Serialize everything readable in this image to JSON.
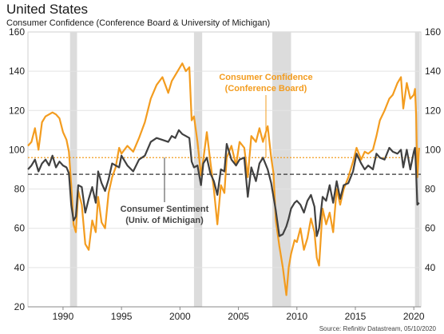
{
  "header": {
    "title": "United States",
    "subtitle": "Consumer Confidence (Conference Board & University of Michigan)"
  },
  "footer": {
    "source": "Source: Refinitiv Datastream, 05/10/2020"
  },
  "chart_data": {
    "type": "line",
    "title": "United States",
    "subtitle": "Consumer Confidence (Conference Board & University of Michigan)",
    "xlabel": "",
    "ylabel": "",
    "xlim": [
      1987,
      2020.6
    ],
    "ylim": [
      20,
      160
    ],
    "x_ticks": [
      "1990",
      "1995",
      "2000",
      "2005",
      "2010",
      "2015",
      "2020"
    ],
    "y_ticks_left": [
      "20",
      "40",
      "60",
      "80",
      "100",
      "120",
      "140",
      "160"
    ],
    "y_ticks_right": [
      "40",
      "60",
      "80",
      "100",
      "120",
      "140",
      "160"
    ],
    "grid": "horizontal",
    "recessions": [
      [
        1990.6,
        1991.2
      ],
      [
        2001.2,
        2001.9
      ],
      [
        2007.9,
        2009.5
      ],
      [
        2020.1,
        2020.5
      ]
    ],
    "annotations": [
      {
        "lines": [
          "Consumer Confidence",
          "(Conference Board)"
        ],
        "color": "#f39c1f",
        "series": 0
      },
      {
        "lines": [
          "Consumer Sentiment",
          "(Univ. of Michigan)"
        ],
        "color": "#444444",
        "series": 1
      }
    ],
    "reference_lines": [
      {
        "value": 96,
        "color": "#f39c1f",
        "style": "dotted"
      },
      {
        "value": 87.5,
        "color": "#333333",
        "style": "dashed"
      }
    ],
    "series": [
      {
        "name": "Consumer Confidence (Conference Board)",
        "color": "#f39c1f",
        "points": [
          [
            1987,
            102
          ],
          [
            1987.3,
            104
          ],
          [
            1987.6,
            111
          ],
          [
            1987.9,
            100
          ],
          [
            1988.2,
            114
          ],
          [
            1988.5,
            117
          ],
          [
            1988.8,
            118
          ],
          [
            1989.1,
            119
          ],
          [
            1989.4,
            118
          ],
          [
            1989.7,
            116
          ],
          [
            1990,
            109
          ],
          [
            1990.3,
            105
          ],
          [
            1990.5,
            99
          ],
          [
            1990.7,
            82
          ],
          [
            1990.9,
            62
          ],
          [
            1991.1,
            58
          ],
          [
            1991.3,
            79
          ],
          [
            1991.6,
            72
          ],
          [
            1991.9,
            52
          ],
          [
            1992.2,
            49
          ],
          [
            1992.5,
            64
          ],
          [
            1992.8,
            58
          ],
          [
            1993,
            76
          ],
          [
            1993.3,
            63
          ],
          [
            1993.6,
            60
          ],
          [
            1993.9,
            78
          ],
          [
            1994.2,
            86
          ],
          [
            1994.5,
            91
          ],
          [
            1994.8,
            101
          ],
          [
            1995,
            98
          ],
          [
            1995.5,
            102
          ],
          [
            1996,
            99
          ],
          [
            1996.5,
            106
          ],
          [
            1997,
            114
          ],
          [
            1997.5,
            126
          ],
          [
            1998,
            133
          ],
          [
            1998.5,
            137
          ],
          [
            1999,
            129
          ],
          [
            1999.3,
            135
          ],
          [
            1999.6,
            138
          ],
          [
            1999.9,
            141
          ],
          [
            2000.2,
            144
          ],
          [
            2000.5,
            140
          ],
          [
            2000.8,
            142
          ],
          [
            2001,
            115
          ],
          [
            2001.2,
            117
          ],
          [
            2001.5,
            104
          ],
          [
            2001.8,
            87
          ],
          [
            2002,
            95
          ],
          [
            2002.3,
            109
          ],
          [
            2002.6,
            94
          ],
          [
            2002.9,
            80
          ],
          [
            2003.2,
            62
          ],
          [
            2003.5,
            82
          ],
          [
            2003.8,
            78
          ],
          [
            2004,
            96
          ],
          [
            2004.4,
            102
          ],
          [
            2004.8,
            92
          ],
          [
            2005.1,
            104
          ],
          [
            2005.5,
            101
          ],
          [
            2005.8,
            86
          ],
          [
            2006.1,
            107
          ],
          [
            2006.5,
            104
          ],
          [
            2006.8,
            111
          ],
          [
            2007.1,
            104
          ],
          [
            2007.5,
            112
          ],
          [
            2007.8,
            96
          ],
          [
            2008,
            88
          ],
          [
            2008.2,
            64
          ],
          [
            2008.5,
            51
          ],
          [
            2008.8,
            40
          ],
          [
            2009.1,
            26
          ],
          [
            2009.3,
            40
          ],
          [
            2009.5,
            47
          ],
          [
            2009.8,
            54
          ],
          [
            2010,
            53
          ],
          [
            2010.3,
            60
          ],
          [
            2010.6,
            49
          ],
          [
            2010.9,
            55
          ],
          [
            2011.2,
            65
          ],
          [
            2011.5,
            58
          ],
          [
            2011.7,
            45
          ],
          [
            2011.9,
            41
          ],
          [
            2012.2,
            70
          ],
          [
            2012.5,
            62
          ],
          [
            2012.8,
            68
          ],
          [
            2013.1,
            58
          ],
          [
            2013.4,
            80
          ],
          [
            2013.7,
            72
          ],
          [
            2014,
            80
          ],
          [
            2014.4,
            86
          ],
          [
            2014.8,
            94
          ],
          [
            2015.1,
            101
          ],
          [
            2015.5,
            95
          ],
          [
            2015.8,
            99
          ],
          [
            2016.1,
            98
          ],
          [
            2016.5,
            100
          ],
          [
            2016.8,
            107
          ],
          [
            2017.1,
            115
          ],
          [
            2017.5,
            120
          ],
          [
            2017.9,
            126
          ],
          [
            2018.2,
            128
          ],
          [
            2018.6,
            134
          ],
          [
            2018.9,
            137
          ],
          [
            2019.1,
            121
          ],
          [
            2019.4,
            134
          ],
          [
            2019.7,
            126
          ],
          [
            2020,
            128
          ],
          [
            2020.1,
            131
          ],
          [
            2020.2,
            118
          ],
          [
            2020.3,
            86
          ],
          [
            2020.45,
            101
          ]
        ]
      },
      {
        "name": "Consumer Sentiment (Univ. of Michigan)",
        "color": "#404040",
        "points": [
          [
            1987,
            90
          ],
          [
            1987.3,
            92
          ],
          [
            1987.6,
            95
          ],
          [
            1987.9,
            89
          ],
          [
            1988.2,
            93
          ],
          [
            1988.5,
            95
          ],
          [
            1988.8,
            92
          ],
          [
            1989.1,
            97
          ],
          [
            1989.4,
            91
          ],
          [
            1989.7,
            94
          ],
          [
            1990,
            92
          ],
          [
            1990.3,
            91
          ],
          [
            1990.5,
            88
          ],
          [
            1990.7,
            72
          ],
          [
            1990.9,
            64
          ],
          [
            1991.1,
            66
          ],
          [
            1991.3,
            82
          ],
          [
            1991.6,
            81
          ],
          [
            1991.9,
            68
          ],
          [
            1992.2,
            75
          ],
          [
            1992.5,
            81
          ],
          [
            1992.8,
            73
          ],
          [
            1993,
            89
          ],
          [
            1993.3,
            83
          ],
          [
            1993.6,
            79
          ],
          [
            1993.9,
            85
          ],
          [
            1994.2,
            93
          ],
          [
            1994.5,
            92
          ],
          [
            1994.8,
            91
          ],
          [
            1995,
            97
          ],
          [
            1995.5,
            92
          ],
          [
            1996,
            89
          ],
          [
            1996.5,
            95
          ],
          [
            1997,
            97
          ],
          [
            1997.5,
            104
          ],
          [
            1998,
            106
          ],
          [
            1998.5,
            105
          ],
          [
            1999,
            104
          ],
          [
            1999.3,
            107
          ],
          [
            1999.6,
            106
          ],
          [
            1999.9,
            110
          ],
          [
            2000.2,
            108
          ],
          [
            2000.5,
            107
          ],
          [
            2000.8,
            106
          ],
          [
            2001,
            94
          ],
          [
            2001.2,
            91
          ],
          [
            2001.5,
            92
          ],
          [
            2001.8,
            82
          ],
          [
            2002,
            93
          ],
          [
            2002.3,
            96
          ],
          [
            2002.6,
            88
          ],
          [
            2002.9,
            84
          ],
          [
            2003.2,
            77
          ],
          [
            2003.5,
            90
          ],
          [
            2003.8,
            89
          ],
          [
            2004,
            103
          ],
          [
            2004.4,
            95
          ],
          [
            2004.8,
            92
          ],
          [
            2005.1,
            95
          ],
          [
            2005.5,
            96
          ],
          [
            2005.8,
            76
          ],
          [
            2006.1,
            91
          ],
          [
            2006.5,
            84
          ],
          [
            2006.8,
            93
          ],
          [
            2007.1,
            96
          ],
          [
            2007.5,
            90
          ],
          [
            2007.8,
            83
          ],
          [
            2008,
            76
          ],
          [
            2008.2,
            69
          ],
          [
            2008.5,
            56
          ],
          [
            2008.8,
            57
          ],
          [
            2009.1,
            61
          ],
          [
            2009.3,
            65
          ],
          [
            2009.5,
            70
          ],
          [
            2009.8,
            73
          ],
          [
            2010,
            74
          ],
          [
            2010.3,
            72
          ],
          [
            2010.6,
            68
          ],
          [
            2010.9,
            74
          ],
          [
            2011.2,
            77
          ],
          [
            2011.5,
            71
          ],
          [
            2011.7,
            56
          ],
          [
            2011.9,
            60
          ],
          [
            2012.2,
            76
          ],
          [
            2012.5,
            74
          ],
          [
            2012.8,
            82
          ],
          [
            2013.1,
            73
          ],
          [
            2013.4,
            84
          ],
          [
            2013.7,
            75
          ],
          [
            2014,
            82
          ],
          [
            2014.4,
            83
          ],
          [
            2014.8,
            89
          ],
          [
            2015.1,
            98
          ],
          [
            2015.5,
            93
          ],
          [
            2015.8,
            90
          ],
          [
            2016.1,
            92
          ],
          [
            2016.5,
            90
          ],
          [
            2016.8,
            98
          ],
          [
            2017.1,
            96
          ],
          [
            2017.5,
            95
          ],
          [
            2017.9,
            101
          ],
          [
            2018.2,
            99
          ],
          [
            2018.6,
            98
          ],
          [
            2018.9,
            100
          ],
          [
            2019.1,
            91
          ],
          [
            2019.4,
            100
          ],
          [
            2019.7,
            90
          ],
          [
            2020,
            99
          ],
          [
            2020.1,
            101
          ],
          [
            2020.2,
            89
          ],
          [
            2020.3,
            72
          ],
          [
            2020.45,
            73
          ]
        ]
      }
    ]
  }
}
